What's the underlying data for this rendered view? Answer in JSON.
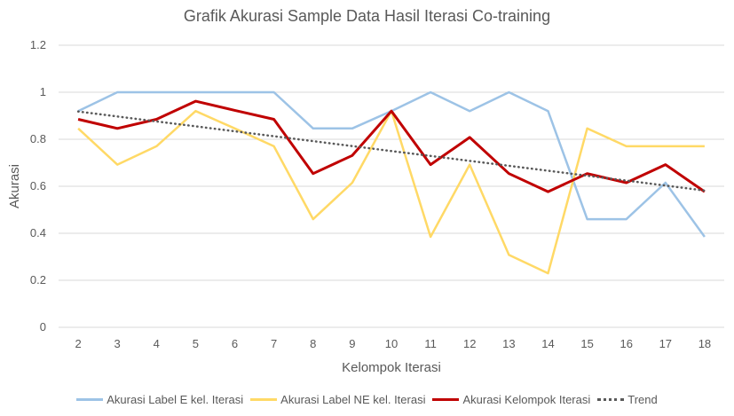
{
  "chart_data": {
    "type": "line",
    "title": "Grafik Akurasi Sample Data Hasil Iterasi Co-training",
    "xlabel": "Kelompok Iterasi",
    "ylabel": "Akurasi",
    "ylim": [
      0,
      1.2
    ],
    "yticks": [
      "0",
      "0.2",
      "0.4",
      "0.6",
      "0.8",
      "1",
      "1.2"
    ],
    "grid": "horizontal",
    "legend": "bottom",
    "categories": [
      "2",
      "3",
      "4",
      "5",
      "6",
      "7",
      "8",
      "9",
      "10",
      "11",
      "12",
      "13",
      "14",
      "15",
      "16",
      "17",
      "18"
    ],
    "series": [
      {
        "name": "Akurasi Label E kel. Iterasi",
        "color": "#9dc3e6",
        "style": "solid",
        "values": [
          0.92,
          1.0,
          1.0,
          1.0,
          1.0,
          1.0,
          0.846,
          0.846,
          0.92,
          1.0,
          0.92,
          1.0,
          0.92,
          0.46,
          0.46,
          0.615,
          0.385
        ]
      },
      {
        "name": "Akurasi Label NE kel. Iterasi",
        "color": "#ffd966",
        "style": "solid",
        "values": [
          0.846,
          0.692,
          0.77,
          0.92,
          0.846,
          0.77,
          0.46,
          0.615,
          0.92,
          0.385,
          0.692,
          0.308,
          0.23,
          0.846,
          0.77,
          0.77,
          0.77
        ]
      },
      {
        "name": "Akurasi Kelompok Iterasi",
        "color": "#c00000",
        "style": "solid",
        "values": [
          0.885,
          0.846,
          0.885,
          0.962,
          0.923,
          0.885,
          0.654,
          0.731,
          0.92,
          0.692,
          0.808,
          0.654,
          0.577,
          0.654,
          0.615,
          0.692,
          0.577
        ]
      },
      {
        "name": "Trend",
        "color": "#595959",
        "style": "dotted",
        "values": [
          0.918,
          0.897,
          0.876,
          0.855,
          0.834,
          0.813,
          0.792,
          0.771,
          0.75,
          0.729,
          0.708,
          0.687,
          0.666,
          0.645,
          0.624,
          0.603,
          0.582
        ]
      }
    ]
  }
}
